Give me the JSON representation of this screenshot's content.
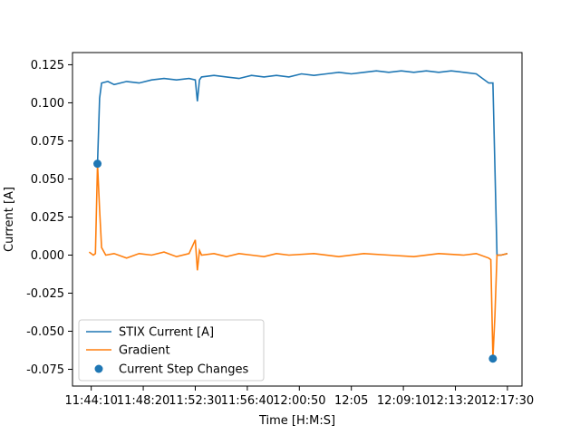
{
  "chart_data": {
    "type": "line",
    "title": "",
    "xlabel": "Time [H:M:S]",
    "ylabel": "Current [A]",
    "xlim": [
      "11:42:40",
      "12:18:40"
    ],
    "ylim": [
      -0.086,
      0.133
    ],
    "x_ticks": [
      "11:44:10",
      "11:48:20",
      "11:52:30",
      "11:56:40",
      "12:00:50",
      "12:05",
      "12:09:10",
      "12:13:20",
      "12:17:30"
    ],
    "y_ticks": [
      "-0.075",
      "-0.050",
      "-0.025",
      "0.000",
      "0.025",
      "0.050",
      "0.075",
      "0.100",
      "0.125"
    ],
    "legend_position": "lower-left",
    "grid": false,
    "series": [
      {
        "name": "STIX Current [A]",
        "color": "#1f77b4",
        "points": [
          [
            "11:44:40",
            0.06
          ],
          [
            "11:44:50",
            0.103
          ],
          [
            "11:45:00",
            0.113
          ],
          [
            "11:45:30",
            0.114
          ],
          [
            "11:46:00",
            0.112
          ],
          [
            "11:47:00",
            0.114
          ],
          [
            "11:48:00",
            0.113
          ],
          [
            "11:49:00",
            0.115
          ],
          [
            "11:50:00",
            0.116
          ],
          [
            "11:51:00",
            0.115
          ],
          [
            "11:52:00",
            0.116
          ],
          [
            "11:52:30",
            0.115
          ],
          [
            "11:52:40",
            0.101
          ],
          [
            "11:52:50",
            0.115
          ],
          [
            "11:53:00",
            0.117
          ],
          [
            "11:54:00",
            0.118
          ],
          [
            "11:55:00",
            0.117
          ],
          [
            "11:56:00",
            0.116
          ],
          [
            "11:57:00",
            0.118
          ],
          [
            "11:58:00",
            0.117
          ],
          [
            "11:59:00",
            0.118
          ],
          [
            "12:00:00",
            0.117
          ],
          [
            "12:01:00",
            0.119
          ],
          [
            "12:02:00",
            0.118
          ],
          [
            "12:03:00",
            0.119
          ],
          [
            "12:04:00",
            0.12
          ],
          [
            "12:05:00",
            0.119
          ],
          [
            "12:06:00",
            0.12
          ],
          [
            "12:07:00",
            0.121
          ],
          [
            "12:08:00",
            0.12
          ],
          [
            "12:09:00",
            0.121
          ],
          [
            "12:10:00",
            0.12
          ],
          [
            "12:11:00",
            0.121
          ],
          [
            "12:12:00",
            0.12
          ],
          [
            "12:13:00",
            0.121
          ],
          [
            "12:14:00",
            0.12
          ],
          [
            "12:15:00",
            0.119
          ],
          [
            "12:16:00",
            0.113
          ],
          [
            "12:16:20",
            0.113
          ],
          [
            "12:16:40",
            0.0
          ],
          [
            "12:17:00",
            0.0
          ],
          [
            "12:17:30",
            0.001
          ]
        ]
      },
      {
        "name": "Gradient",
        "color": "#ff7f0e",
        "points": [
          [
            "11:44:00",
            0.002
          ],
          [
            "11:44:20",
            0.0
          ],
          [
            "11:44:30",
            0.001
          ],
          [
            "11:44:40",
            0.06
          ],
          [
            "11:44:50",
            0.03
          ],
          [
            "11:45:00",
            0.005
          ],
          [
            "11:45:20",
            0.0
          ],
          [
            "11:46:00",
            0.001
          ],
          [
            "11:47:00",
            -0.002
          ],
          [
            "11:48:00",
            0.001
          ],
          [
            "11:49:00",
            0.0
          ],
          [
            "11:50:00",
            0.002
          ],
          [
            "11:51:00",
            -0.001
          ],
          [
            "11:52:00",
            0.001
          ],
          [
            "11:52:30",
            0.01
          ],
          [
            "11:52:40",
            -0.01
          ],
          [
            "11:52:50",
            0.003
          ],
          [
            "11:53:00",
            0.0
          ],
          [
            "11:54:00",
            0.001
          ],
          [
            "11:55:00",
            -0.001
          ],
          [
            "11:56:00",
            0.001
          ],
          [
            "11:57:00",
            0.0
          ],
          [
            "11:58:00",
            -0.001
          ],
          [
            "11:59:00",
            0.001
          ],
          [
            "12:00:00",
            0.0
          ],
          [
            "12:02:00",
            0.001
          ],
          [
            "12:04:00",
            -0.001
          ],
          [
            "12:06:00",
            0.001
          ],
          [
            "12:08:00",
            0.0
          ],
          [
            "12:10:00",
            -0.001
          ],
          [
            "12:12:00",
            0.001
          ],
          [
            "12:14:00",
            0.0
          ],
          [
            "12:15:00",
            0.001
          ],
          [
            "12:16:00",
            -0.002
          ],
          [
            "12:16:10",
            -0.003
          ],
          [
            "12:16:20",
            -0.068
          ],
          [
            "12:16:30",
            -0.04
          ],
          [
            "12:16:40",
            0.0
          ],
          [
            "12:17:00",
            0.0
          ],
          [
            "12:17:30",
            0.001
          ]
        ]
      }
    ],
    "scatter": {
      "name": "Current Step Changes",
      "color": "#1f77b4",
      "points": [
        [
          "11:44:40",
          0.06
        ],
        [
          "12:16:20",
          -0.068
        ]
      ]
    }
  }
}
